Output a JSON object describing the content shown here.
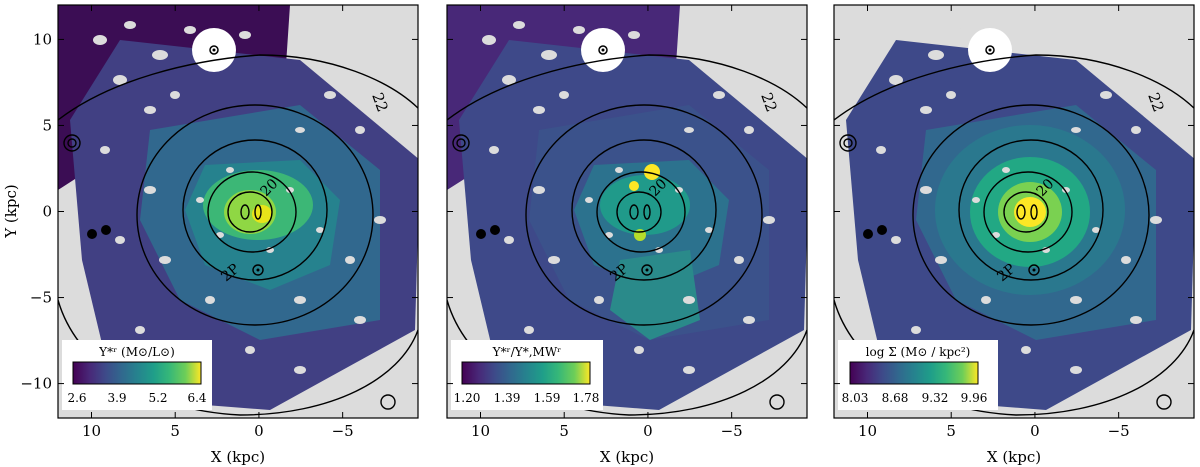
{
  "chart_data": {
    "type": "heatmap",
    "xlim": [
      12,
      -9.5
    ],
    "ylim": [
      -12,
      12
    ],
    "shared_axes": {
      "xlabel": "X (kpc)",
      "ylabel": "Y (kpc)",
      "xticks": [
        10,
        5,
        0,
        -5
      ],
      "xtick_labels": [
        "10",
        "5",
        "0",
        "−5"
      ],
      "yticks": [
        10,
        5,
        0,
        -5,
        -10
      ],
      "ytick_labels": [
        "10",
        "5",
        "0",
        "−5",
        "−10"
      ]
    },
    "contour_labels": [
      "22",
      "20",
      "2P"
    ],
    "panels": [
      {
        "quantity": "Upsilon_star_r",
        "colorbar_label": "Υ*ʳ (M⊙/L⊙)",
        "colorbar_ticks": [
          "2.6",
          "3.9",
          "5.2",
          "6.4"
        ],
        "colorbar_range": [
          2.6,
          6.4
        ]
      },
      {
        "quantity": "Upsilon_star_r_over_MW",
        "colorbar_label": "Υ*ʳ/Υ*,MWʳ",
        "colorbar_ticks": [
          "1.20",
          "1.39",
          "1.59",
          "1.78"
        ],
        "colorbar_range": [
          1.2,
          1.78
        ]
      },
      {
        "quantity": "log_Sigma",
        "colorbar_label": "log Σ (M⊙ / kpc²)",
        "colorbar_ticks": [
          "8.03",
          "8.68",
          "9.32",
          "9.96"
        ],
        "colorbar_range": [
          8.03,
          9.96
        ]
      }
    ]
  }
}
